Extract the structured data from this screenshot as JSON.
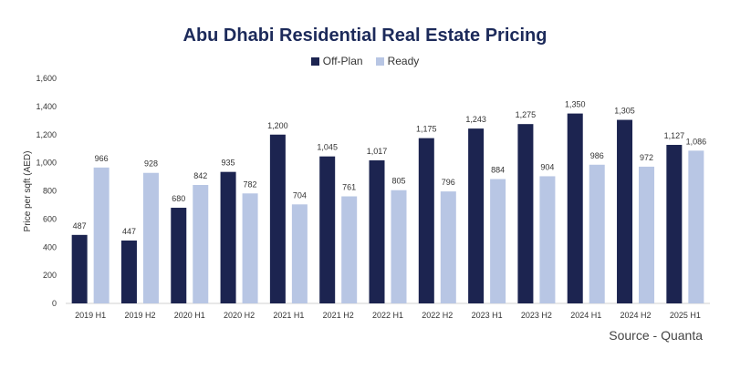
{
  "chart_data": {
    "type": "bar",
    "title": "Abu Dhabi Residential Real Estate Pricing",
    "ylabel": "Price per sqft (AED)",
    "xlabel": "",
    "ylim": [
      0,
      1600
    ],
    "yticks": [
      0,
      200,
      400,
      600,
      800,
      1000,
      1200,
      1400,
      1600
    ],
    "ytick_labels": [
      "0",
      "200",
      "400",
      "600",
      "800",
      "1,000",
      "1,200",
      "1,400",
      "1,600"
    ],
    "grid": false,
    "legend_position": "top-center",
    "categories": [
      "2019 H1",
      "2019 H2",
      "2020 H1",
      "2020 H2",
      "2021 H1",
      "2021 H2",
      "2022 H1",
      "2022 H2",
      "2023 H1",
      "2023 H2",
      "2024 H1",
      "2024 H2",
      "2025 H1"
    ],
    "series": [
      {
        "name": "Off-Plan",
        "color": "#1c2450",
        "values": [
          487,
          447,
          680,
          935,
          1200,
          1045,
          1017,
          1175,
          1243,
          1275,
          1350,
          1305,
          1127
        ],
        "labels": [
          "487",
          "447",
          "680",
          "935",
          "1,200",
          "1,045",
          "1,017",
          "1,175",
          "1,243",
          "1,275",
          "1,350",
          "1,305",
          "1,127"
        ]
      },
      {
        "name": "Ready",
        "color": "#b8c6e4",
        "values": [
          966,
          928,
          842,
          782,
          704,
          761,
          805,
          796,
          884,
          904,
          986,
          972,
          1086
        ],
        "labels": [
          "966",
          "928",
          "842",
          "782",
          "704",
          "761",
          "805",
          "796",
          "884",
          "904",
          "986",
          "972",
          "1,086"
        ]
      }
    ]
  },
  "source": "Source - Quanta"
}
